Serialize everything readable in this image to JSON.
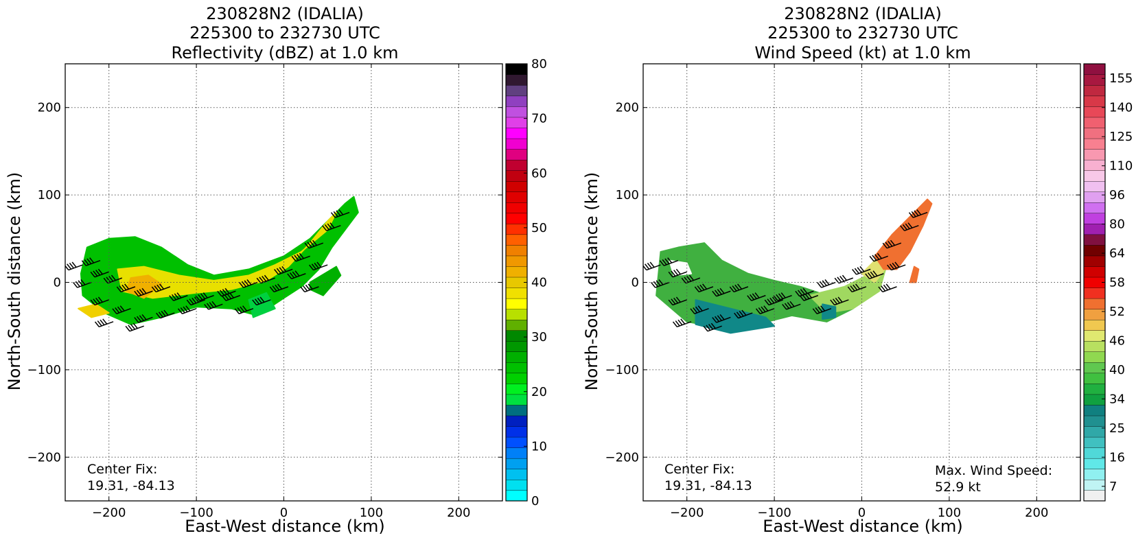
{
  "chart_data": [
    {
      "type": "heatmap",
      "title_lines": [
        "230828N2 (IDALIA)",
        "225300 to 232730 UTC",
        "Reflectivity (dBZ) at 1.0 km"
      ],
      "xlabel": "East-West distance (km)",
      "ylabel": "North-South distance (km)",
      "xlim": [
        -250,
        250
      ],
      "ylim": [
        -250,
        250
      ],
      "xticks": [
        -200,
        -100,
        0,
        100,
        200
      ],
      "yticks": [
        -200,
        -100,
        0,
        100,
        200
      ],
      "tick_labels_x": [
        "−200",
        "−100",
        "0",
        "100",
        "200"
      ],
      "tick_labels_y": [
        "−200",
        "−100",
        "0",
        "100",
        "200"
      ],
      "grid": true,
      "annotation": [
        "Center Fix:",
        "19.31, -84.13"
      ],
      "colorbar": {
        "min": 0,
        "max": 80,
        "ticks": [
          0,
          10,
          20,
          30,
          40,
          50,
          60,
          70,
          80
        ],
        "colors": [
          "#00ffff",
          "#00e0f0",
          "#00c0f0",
          "#00a0f0",
          "#0080f8",
          "#0050ff",
          "#0030e8",
          "#0020c0",
          "#006e80",
          "#00e040",
          "#00f020",
          "#00d000",
          "#00c000",
          "#00b000",
          "#009800",
          "#008800",
          "#60b000",
          "#b8e000",
          "#ffff00",
          "#f0e000",
          "#e8c800",
          "#f0b000",
          "#f09800",
          "#f08000",
          "#ff6000",
          "#ff3000",
          "#ff0000",
          "#f00000",
          "#e00000",
          "#d00000",
          "#c00010",
          "#c00030",
          "#e00080",
          "#f000d0",
          "#ff00ff",
          "#e040e8",
          "#c050e0",
          "#9040c0",
          "#604080",
          "#301830",
          "#000000"
        ]
      },
      "precip_regions": [
        {
          "points": [
            [
              -225,
              40
            ],
            [
              -200,
              50
            ],
            [
              -170,
              52
            ],
            [
              -140,
              40
            ],
            [
              -110,
              20
            ],
            [
              -80,
              8
            ],
            [
              -40,
              15
            ],
            [
              0,
              30
            ],
            [
              30,
              50
            ],
            [
              55,
              75
            ],
            [
              70,
              90
            ],
            [
              80,
              98
            ],
            [
              85,
              80
            ],
            [
              70,
              60
            ],
            [
              55,
              40
            ],
            [
              40,
              15
            ],
            [
              20,
              -5
            ],
            [
              0,
              -18
            ],
            [
              -30,
              -38
            ],
            [
              -60,
              -30
            ],
            [
              -100,
              -28
            ],
            [
              -140,
              -40
            ],
            [
              -175,
              -48
            ],
            [
              -205,
              -35
            ],
            [
              -230,
              -15
            ],
            [
              -232,
              10
            ]
          ],
          "color": "#00c000"
        },
        {
          "points": [
            [
              -190,
              15
            ],
            [
              -160,
              18
            ],
            [
              -120,
              8
            ],
            [
              -80,
              2
            ],
            [
              -40,
              8
            ],
            [
              -10,
              20
            ],
            [
              20,
              35
            ],
            [
              50,
              60
            ],
            [
              60,
              80
            ],
            [
              50,
              70
            ],
            [
              30,
              45
            ],
            [
              5,
              18
            ],
            [
              -20,
              2
            ],
            [
              -60,
              -8
            ],
            [
              -100,
              -12
            ],
            [
              -150,
              -18
            ],
            [
              -185,
              -10
            ]
          ],
          "color": "#e8e000"
        },
        {
          "points": [
            [
              -175,
              5
            ],
            [
              -155,
              8
            ],
            [
              -140,
              -2
            ],
            [
              -160,
              -18
            ],
            [
              -180,
              -10
            ]
          ],
          "color": "#f0b000"
        },
        {
          "points": [
            [
              -235,
              -30
            ],
            [
              -215,
              -25
            ],
            [
              -200,
              -35
            ],
            [
              -220,
              -40
            ]
          ],
          "color": "#f0d000"
        },
        {
          "points": [
            [
              30,
              0
            ],
            [
              60,
              18
            ],
            [
              65,
              8
            ],
            [
              45,
              -15
            ],
            [
              30,
              -8
            ]
          ],
          "color": "#00b000"
        },
        {
          "points": [
            [
              -40,
              -20
            ],
            [
              -20,
              -12
            ],
            [
              -10,
              -30
            ],
            [
              -35,
              -40
            ]
          ],
          "color": "#00d040"
        }
      ]
    },
    {
      "type": "heatmap",
      "title_lines": [
        "230828N2 (IDALIA)",
        "225300 to 232730 UTC",
        "Wind Speed (kt) at 1.0 km"
      ],
      "xlabel": "East-West distance (km)",
      "ylabel": "North-South distance (km)",
      "xlim": [
        -250,
        250
      ],
      "ylim": [
        -250,
        250
      ],
      "xticks": [
        -200,
        -100,
        0,
        100,
        200
      ],
      "yticks": [
        -200,
        -100,
        0,
        100,
        200
      ],
      "tick_labels_x": [
        "−200",
        "−100",
        "0",
        "100",
        "200"
      ],
      "tick_labels_y": [
        "−200",
        "−100",
        "0",
        "100",
        "200"
      ],
      "grid": true,
      "annotation": [
        "Center Fix:",
        "19.31, -84.13"
      ],
      "annotation_right": [
        "Max. Wind Speed:",
        "52.9 kt"
      ],
      "colorbar": {
        "ticks": [
          7,
          16,
          25,
          34,
          40,
          46,
          52,
          58,
          64,
          80,
          96,
          110,
          125,
          140,
          155
        ],
        "colors": [
          "#f0f0f0",
          "#c0f4f4",
          "#90f0f0",
          "#60e8e8",
          "#50d8d8",
          "#40c0c0",
          "#30a8a8",
          "#209090",
          "#108080",
          "#10a040",
          "#20b040",
          "#40c040",
          "#60c850",
          "#90d850",
          "#b8e060",
          "#e0e870",
          "#f0c850",
          "#f0a040",
          "#f07030",
          "#f03020",
          "#f00000",
          "#d00000",
          "#a00000",
          "#700000",
          "#801040",
          "#a020b0",
          "#c040e0",
          "#d070f0",
          "#e0a0f0",
          "#f0c0f0",
          "#f8c8e8",
          "#f8b0d0",
          "#f898b0",
          "#f88090",
          "#f07080",
          "#f06070",
          "#e84858",
          "#d83848",
          "#c02840",
          "#a81840",
          "#901040"
        ]
      },
      "wind_regions": [
        {
          "points": [
            [
              -230,
              35
            ],
            [
              -210,
              40
            ],
            [
              -180,
              45
            ],
            [
              -160,
              25
            ],
            [
              -130,
              10
            ],
            [
              -100,
              2
            ],
            [
              -70,
              -5
            ],
            [
              -40,
              -15
            ],
            [
              -20,
              -20
            ],
            [
              -10,
              -30
            ],
            [
              -40,
              -45
            ],
            [
              -80,
              -38
            ],
            [
              -120,
              -48
            ],
            [
              -160,
              -52
            ],
            [
              -200,
              -45
            ],
            [
              -235,
              -15
            ]
          ],
          "color": "#40b040"
        },
        {
          "points": [
            [
              -190,
              -20
            ],
            [
              -150,
              -30
            ],
            [
              -110,
              -40
            ],
            [
              -100,
              -50
            ],
            [
              -150,
              -58
            ],
            [
              -190,
              -48
            ]
          ],
          "color": "#108888"
        },
        {
          "points": [
            [
              -60,
              -15
            ],
            [
              -20,
              -5
            ],
            [
              10,
              10
            ],
            [
              30,
              25
            ],
            [
              20,
              -10
            ],
            [
              -10,
              -30
            ],
            [
              -40,
              -35
            ]
          ],
          "color": "#a0d860"
        },
        {
          "points": [
            [
              0,
              10
            ],
            [
              20,
              30
            ],
            [
              40,
              50
            ],
            [
              30,
              20
            ],
            [
              15,
              0
            ]
          ],
          "color": "#e0e070"
        },
        {
          "points": [
            [
              15,
              30
            ],
            [
              35,
              55
            ],
            [
              55,
              75
            ],
            [
              75,
              95
            ],
            [
              80,
              90
            ],
            [
              70,
              65
            ],
            [
              55,
              35
            ],
            [
              40,
              15
            ],
            [
              25,
              15
            ]
          ],
          "color": "#f07030"
        },
        {
          "points": [
            [
              55,
              0
            ],
            [
              60,
              18
            ],
            [
              65,
              15
            ],
            [
              62,
              0
            ]
          ],
          "color": "#f07030"
        },
        {
          "points": [
            [
              -45,
              -25
            ],
            [
              -30,
              -28
            ],
            [
              -30,
              -40
            ],
            [
              -45,
              -42
            ]
          ],
          "color": "#108888"
        },
        {
          "points": [
            [
              -220,
              25
            ],
            [
              -200,
              22
            ],
            [
              -195,
              10
            ],
            [
              -215,
              8
            ]
          ],
          "color": "#ffffff"
        }
      ]
    }
  ],
  "wind_barbs": [
    [
      -230,
      20
    ],
    [
      -210,
      25
    ],
    [
      -200,
      12
    ],
    [
      -185,
      5
    ],
    [
      -170,
      -5
    ],
    [
      -150,
      -10
    ],
    [
      -130,
      -5
    ],
    [
      -110,
      -15
    ],
    [
      -90,
      -20
    ],
    [
      -70,
      -25
    ],
    [
      -50,
      -15
    ],
    [
      -30,
      0
    ],
    [
      -10,
      5
    ],
    [
      10,
      15
    ],
    [
      30,
      30
    ],
    [
      45,
      45
    ],
    [
      65,
      65
    ],
    [
      75,
      80
    ],
    [
      -220,
      0
    ],
    [
      -200,
      -20
    ],
    [
      -175,
      -30
    ],
    [
      -150,
      -40
    ],
    [
      -125,
      -35
    ],
    [
      -100,
      -30
    ],
    [
      -80,
      -15
    ],
    [
      -55,
      -10
    ],
    [
      -35,
      -30
    ],
    [
      -15,
      -20
    ],
    [
      5,
      -5
    ],
    [
      25,
      10
    ],
    [
      40,
      -5
    ],
    [
      50,
      20
    ],
    [
      -195,
      -45
    ],
    [
      -160,
      -50
    ]
  ]
}
